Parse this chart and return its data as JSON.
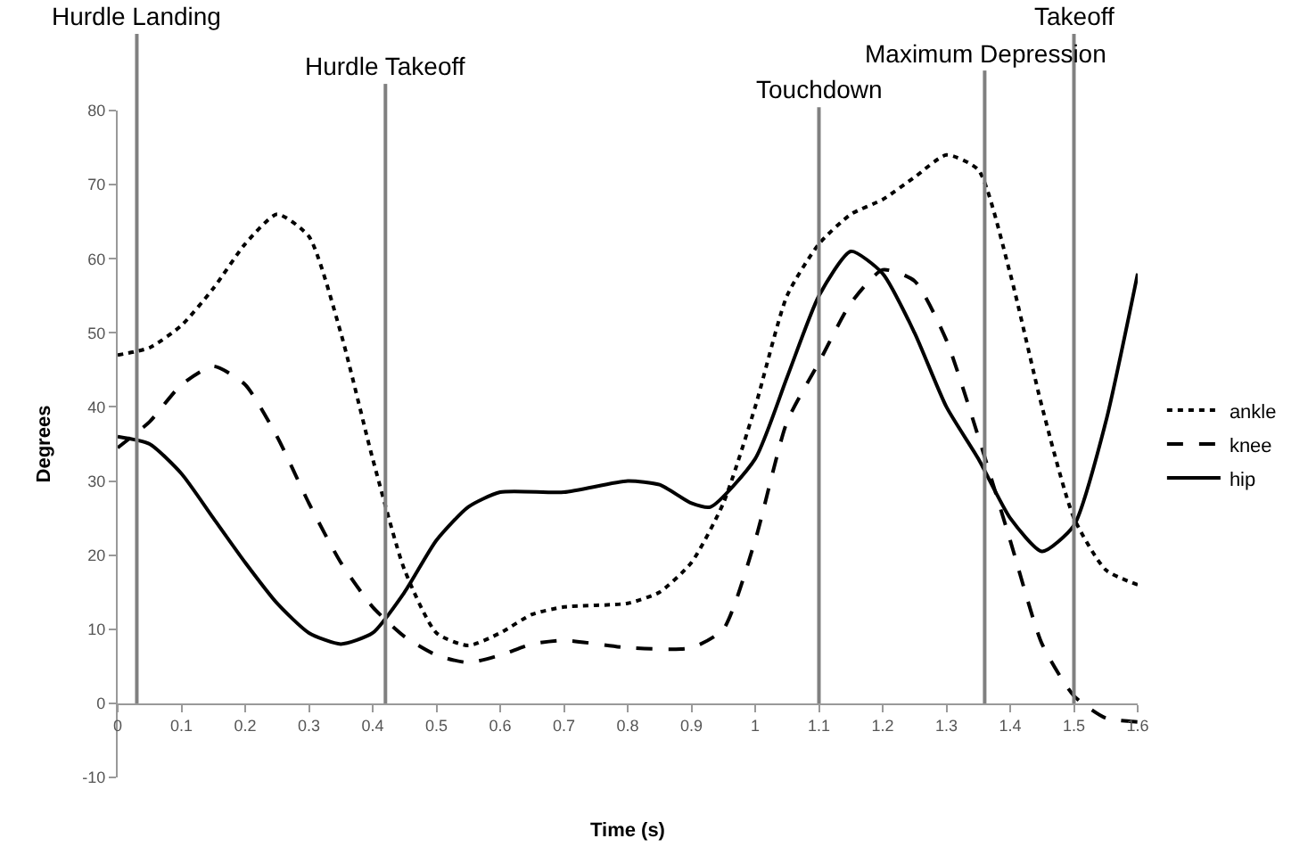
{
  "chart_data": {
    "type": "line",
    "xlabel": "Time (s)",
    "ylabel": "Degrees",
    "xlim": [
      0,
      1.6
    ],
    "xticks": [
      0,
      0.1,
      0.2,
      0.3,
      0.4,
      0.5,
      0.6,
      0.7,
      0.8,
      0.9,
      1,
      1.1,
      1.2,
      1.3,
      1.4,
      1.5,
      1.6
    ],
    "ylim": [
      -10,
      80
    ],
    "yticks": [
      -10,
      0,
      10,
      20,
      30,
      40,
      50,
      60,
      70,
      80
    ],
    "legend": "right",
    "marker": "none",
    "series": [
      {
        "name": "ankle",
        "color": "#000000",
        "line_style": "dotted",
        "x": [
          0,
          0.05,
          0.1,
          0.15,
          0.2,
          0.25,
          0.3,
          0.35,
          0.4,
          0.45,
          0.5,
          0.55,
          0.6,
          0.65,
          0.7,
          0.8,
          0.85,
          0.9,
          0.95,
          1.0,
          1.05,
          1.1,
          1.15,
          1.2,
          1.25,
          1.3,
          1.35,
          1.4,
          1.45,
          1.5,
          1.55,
          1.6
        ],
        "values": [
          47,
          48,
          51,
          56,
          62,
          66,
          63,
          50,
          33,
          18,
          9.5,
          7.8,
          9.5,
          12,
          13,
          13.5,
          15,
          19,
          27,
          40,
          55,
          62,
          66,
          68,
          71,
          74,
          72,
          58,
          40,
          25,
          18,
          16
        ]
      },
      {
        "name": "knee",
        "color": "#000000",
        "line_style": "dashed",
        "x": [
          0,
          0.05,
          0.1,
          0.15,
          0.2,
          0.25,
          0.3,
          0.35,
          0.4,
          0.45,
          0.5,
          0.55,
          0.6,
          0.65,
          0.7,
          0.8,
          0.9,
          0.95,
          1.0,
          1.05,
          1.1,
          1.15,
          1.2,
          1.25,
          1.3,
          1.35,
          1.4,
          1.45,
          1.5,
          1.55,
          1.6
        ],
        "values": [
          34.5,
          38,
          43,
          45.5,
          43,
          36,
          27,
          19,
          13,
          9,
          6.5,
          5.5,
          6.5,
          8,
          8.5,
          7.5,
          7.5,
          10,
          22,
          38,
          46,
          54,
          58.5,
          57,
          49,
          36,
          22,
          8,
          1,
          -2,
          -2.5
        ]
      },
      {
        "name": "hip",
        "color": "#000000",
        "line_style": "solid",
        "x": [
          0,
          0.05,
          0.1,
          0.15,
          0.2,
          0.25,
          0.3,
          0.35,
          0.4,
          0.45,
          0.5,
          0.55,
          0.6,
          0.7,
          0.8,
          0.85,
          0.9,
          0.93,
          1.0,
          1.05,
          1.1,
          1.15,
          1.2,
          1.25,
          1.3,
          1.35,
          1.4,
          1.45,
          1.5,
          1.55,
          1.6
        ],
        "values": [
          36,
          35,
          31,
          25,
          19,
          13.5,
          9.5,
          8,
          9.5,
          15,
          22,
          26.5,
          28.5,
          28.5,
          30,
          29.5,
          27,
          26.5,
          33,
          44,
          55,
          61,
          58,
          50,
          40,
          33,
          25,
          20.5,
          24,
          38,
          58
        ]
      }
    ],
    "ref_lines": [
      {
        "axis": "x",
        "value": 0.03,
        "label": "Hurdle Landing",
        "color": "#808080"
      },
      {
        "axis": "x",
        "value": 0.42,
        "label": "Hurdle Takeoff",
        "color": "#808080"
      },
      {
        "axis": "x",
        "value": 1.1,
        "label": "Touchdown",
        "color": "#808080"
      },
      {
        "axis": "x",
        "value": 1.36,
        "label": "Maximum Depression",
        "color": "#808080"
      },
      {
        "axis": "x",
        "value": 1.5,
        "label": "Takeoff",
        "color": "#808080"
      }
    ]
  }
}
